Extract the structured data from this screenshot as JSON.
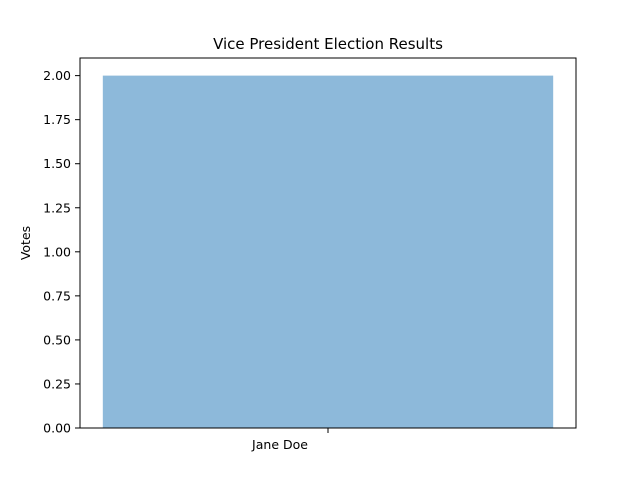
{
  "chart_data": {
    "type": "bar",
    "title": "Vice President Election Results",
    "xlabel": "",
    "ylabel": "Votes",
    "categories": [
      "Jane Doe"
    ],
    "values": [
      2
    ],
    "ylim": [
      0,
      2.1
    ],
    "yticks": [
      0.0,
      0.25,
      0.5,
      0.75,
      1.0,
      1.25,
      1.5,
      1.75,
      2.0
    ],
    "ytick_labels": [
      "0.00",
      "0.25",
      "0.50",
      "0.75",
      "1.00",
      "1.25",
      "1.50",
      "1.75",
      "2.00"
    ],
    "bar_color": "#8db9da",
    "grid": false,
    "legend": "none"
  }
}
